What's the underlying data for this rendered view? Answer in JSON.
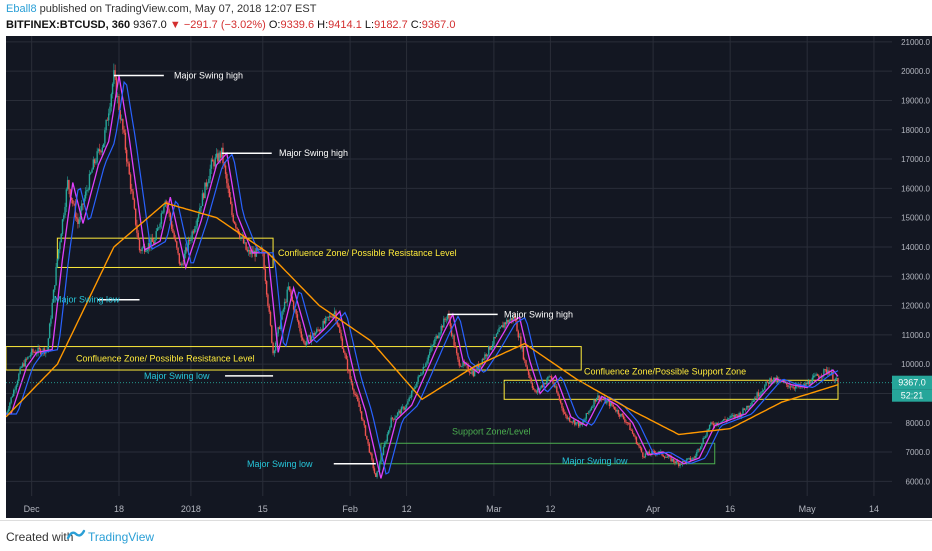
{
  "header": {
    "author": "Eball8",
    "published": "published on TradingView.com, May 07, 2018 12:07 EST",
    "symbol": "BITFINEX:BTCUSD, 360",
    "last": "9367.0",
    "change": "−291.7 (−3.02%)",
    "o_label": "O:",
    "o_value": "9339.6",
    "h_label": "H:",
    "h_value": "9414.1",
    "l_label": "L:",
    "l_value": "9182.7",
    "c_label": "C:",
    "c_value": "9367.0"
  },
  "footer": {
    "created_with": "Created with",
    "brand": "TradingView"
  },
  "colors": {
    "background": "#131722",
    "grid": "#2a2e39",
    "up": "#26a69a",
    "down": "#ef5350",
    "ma_fast": "#e040fb",
    "ma_mid": "#2962ff",
    "ma_slow": "#ff9800",
    "zone": "#ffeb3b",
    "support_zone": "#4caf50",
    "label_white": "#ffffff",
    "label_cyan": "#26c6da",
    "label_yellow": "#ffeb3b",
    "label_green": "#4caf50"
  },
  "chart_data": {
    "type": "line",
    "xlabel": "",
    "ylabel": "",
    "ylim": [
      5500,
      21200
    ],
    "y_ticks": [
      "6000.0",
      "7000.0",
      "8000.0",
      "9000.0",
      "10000.0",
      "11000.0",
      "12000.0",
      "13000.0",
      "14000.0",
      "15000.0",
      "16000.0",
      "17000.0",
      "18000.0",
      "19000.0",
      "20000.0",
      "21000.0"
    ],
    "x_ticks": [
      "Dec",
      "18",
      "2018",
      "15",
      "Feb",
      "12",
      "Mar",
      "12",
      "Apr",
      "16",
      "May",
      "14"
    ],
    "last_price_label": "9367.0",
    "countdown_label": "52:21",
    "price_points": [
      {
        "t": "Nov 26",
        "v": 8300
      },
      {
        "t": "Nov 29",
        "v": 9900
      },
      {
        "t": "Dec 1",
        "v": 10400
      },
      {
        "t": "Dec 4",
        "v": 10500
      },
      {
        "t": "Dec 6",
        "v": 13600
      },
      {
        "t": "Dec 8",
        "v": 16200
      },
      {
        "t": "Dec 10",
        "v": 14800
      },
      {
        "t": "Dec 13",
        "v": 16800
      },
      {
        "t": "Dec 15",
        "v": 17600
      },
      {
        "t": "Dec 17",
        "v": 19850
      },
      {
        "t": "Dec 19",
        "v": 17700
      },
      {
        "t": "Dec 22",
        "v": 13900
      },
      {
        "t": "Dec 25",
        "v": 14200
      },
      {
        "t": "Dec 27",
        "v": 15700
      },
      {
        "t": "Dec 30",
        "v": 13300
      },
      {
        "t": "Jan 2",
        "v": 14900
      },
      {
        "t": "Jan 5",
        "v": 16800
      },
      {
        "t": "Jan 7",
        "v": 17200
      },
      {
        "t": "Jan 9",
        "v": 15100
      },
      {
        "t": "Jan 12",
        "v": 13800
      },
      {
        "t": "Jan 15",
        "v": 13800
      },
      {
        "t": "Jan 17",
        "v": 10400
      },
      {
        "t": "Jan 20",
        "v": 12600
      },
      {
        "t": "Jan 23",
        "v": 10700
      },
      {
        "t": "Jan 26",
        "v": 11200
      },
      {
        "t": "Jan 29",
        "v": 11800
      },
      {
        "t": "Feb 1",
        "v": 9500
      },
      {
        "t": "Feb 3",
        "v": 8400
      },
      {
        "t": "Feb 6",
        "v": 6100
      },
      {
        "t": "Feb 9",
        "v": 8100
      },
      {
        "t": "Feb 12",
        "v": 8600
      },
      {
        "t": "Feb 15",
        "v": 9800
      },
      {
        "t": "Feb 18",
        "v": 11000
      },
      {
        "t": "Feb 20",
        "v": 11700
      },
      {
        "t": "Feb 22",
        "v": 10100
      },
      {
        "t": "Feb 25",
        "v": 9700
      },
      {
        "t": "Feb 28",
        "v": 10500
      },
      {
        "t": "Mar 3",
        "v": 11400
      },
      {
        "t": "Mar 5",
        "v": 11600
      },
      {
        "t": "Mar 7",
        "v": 10100
      },
      {
        "t": "Mar 9",
        "v": 9000
      },
      {
        "t": "Mar 12",
        "v": 9600
      },
      {
        "t": "Mar 15",
        "v": 8200
      },
      {
        "t": "Mar 18",
        "v": 7900
      },
      {
        "t": "Mar 21",
        "v": 8900
      },
      {
        "t": "Mar 24",
        "v": 8600
      },
      {
        "t": "Mar 27",
        "v": 8000
      },
      {
        "t": "Mar 30",
        "v": 6900
      },
      {
        "t": "Apr 2",
        "v": 7000
      },
      {
        "t": "Apr 6",
        "v": 6600
      },
      {
        "t": "Apr 9",
        "v": 6800
      },
      {
        "t": "Apr 12",
        "v": 7900
      },
      {
        "t": "Apr 15",
        "v": 8100
      },
      {
        "t": "Apr 18",
        "v": 8300
      },
      {
        "t": "Apr 21",
        "v": 8900
      },
      {
        "t": "Apr 24",
        "v": 9500
      },
      {
        "t": "Apr 27",
        "v": 9300
      },
      {
        "t": "Apr 30",
        "v": 9200
      },
      {
        "t": "May 3",
        "v": 9600
      },
      {
        "t": "May 5",
        "v": 9800
      },
      {
        "t": "May 7",
        "v": 9367
      }
    ],
    "ma_slow_points": [
      {
        "t": "Nov 26",
        "v": 8200
      },
      {
        "t": "Dec 6",
        "v": 10000
      },
      {
        "t": "Dec 17",
        "v": 14000
      },
      {
        "t": "Dec 27",
        "v": 15500
      },
      {
        "t": "Jan 6",
        "v": 15000
      },
      {
        "t": "Jan 16",
        "v": 13800
      },
      {
        "t": "Jan 26",
        "v": 12000
      },
      {
        "t": "Feb 5",
        "v": 10800
      },
      {
        "t": "Feb 15",
        "v": 8800
      },
      {
        "t": "Feb 25",
        "v": 9900
      },
      {
        "t": "Mar 7",
        "v": 10700
      },
      {
        "t": "Mar 17",
        "v": 9500
      },
      {
        "t": "Mar 27",
        "v": 8500
      },
      {
        "t": "Apr 6",
        "v": 7600
      },
      {
        "t": "Apr 16",
        "v": 7800
      },
      {
        "t": "Apr 26",
        "v": 8700
      },
      {
        "t": "May 7",
        "v": 9300
      }
    ],
    "annotations": [
      {
        "text": "Major Swing high",
        "kind": "high",
        "at": "Dec 17",
        "v": 19850
      },
      {
        "text": "Major Swing high",
        "kind": "high",
        "at": "Jan 7",
        "v": 17200
      },
      {
        "text": "Major Swing high",
        "kind": "high",
        "at": "Feb 20",
        "v": 11700
      },
      {
        "text": "Major Swing low",
        "kind": "low",
        "at": "Dec 22",
        "v": 12200
      },
      {
        "text": "Major Swing low",
        "kind": "low",
        "at": "Jan 17",
        "v": 9600
      },
      {
        "text": "Major Swing low",
        "kind": "low",
        "at": "Feb 6",
        "v": 6600
      },
      {
        "text": "Major Swing low",
        "kind": "low",
        "at": "Apr 6",
        "v": 6600
      }
    ],
    "zones": [
      {
        "label": "Confluence Zone/ Possible Resistance Level",
        "kind": "resistance",
        "from": "Dec 6",
        "to": "Jan 17",
        "low": 13300,
        "high": 14300
      },
      {
        "label": "Confluence Zone/ Possible Resistance Level",
        "kind": "resistance",
        "from": "Nov 26",
        "to": "Mar 18",
        "low": 9800,
        "high": 10600
      },
      {
        "label": "Confluence Zone/Possible Support Zone",
        "kind": "support",
        "from": "Mar 3",
        "to": "May 7",
        "low": 8800,
        "high": 9450
      },
      {
        "label": "Support Zone/Level",
        "kind": "support",
        "from": "Feb 7",
        "to": "Apr 13",
        "low": 6600,
        "high": 7300
      }
    ]
  }
}
